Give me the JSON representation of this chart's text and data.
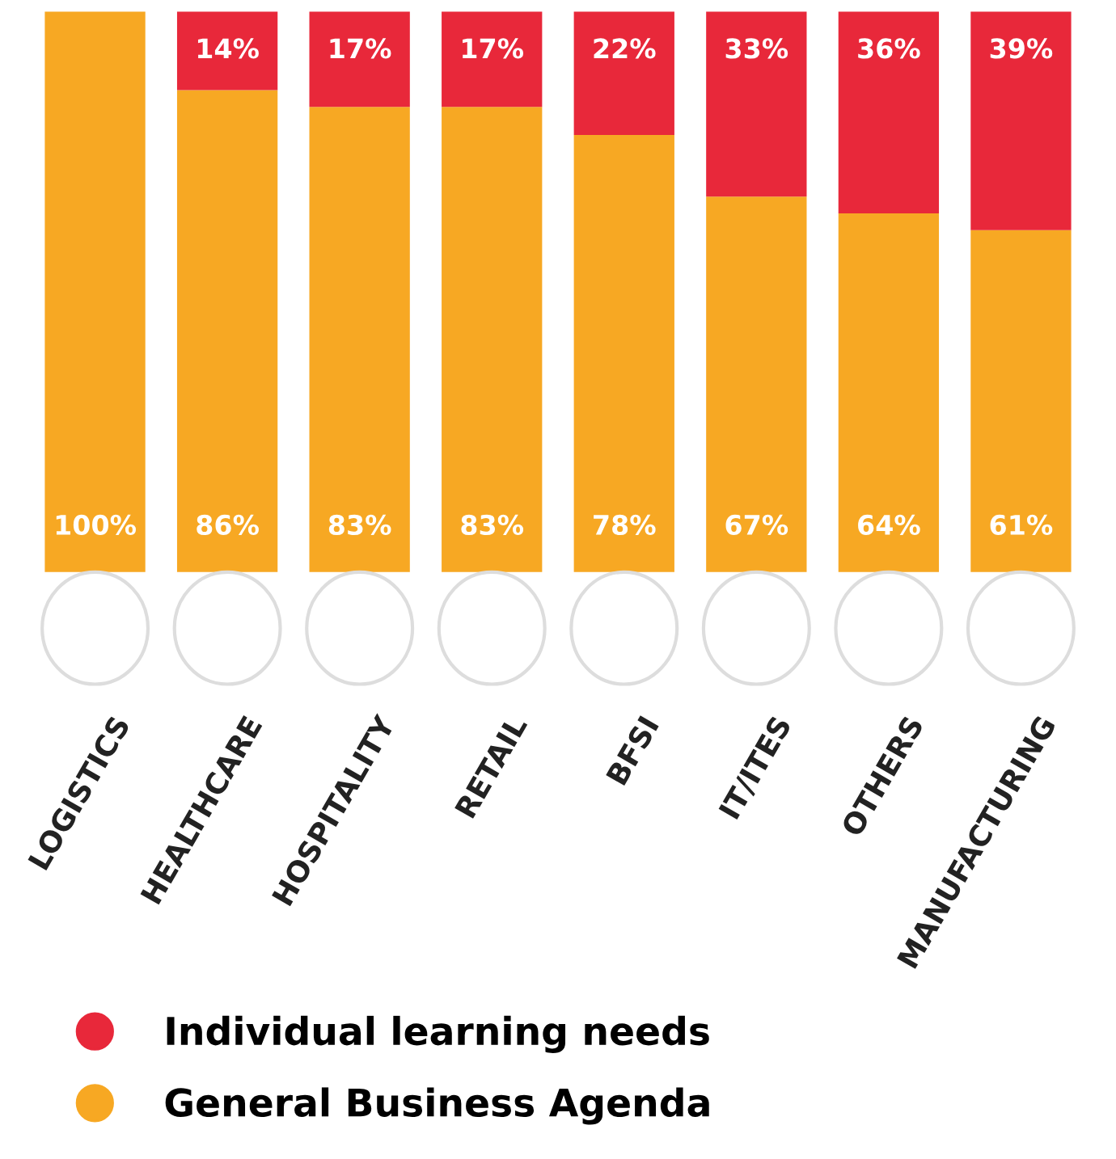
{
  "chart_data": {
    "type": "bar",
    "stacked": true,
    "categories": [
      "LOGISTICS",
      "HEALTHCARE",
      "HOSPITALITY",
      "RETAIL",
      "BFSI",
      "IT/ITES",
      "OTHERS",
      "MANUFACTURING"
    ],
    "series": [
      {
        "name": "General Business Agenda",
        "color": "#f7a823",
        "values": [
          100,
          86,
          83,
          83,
          78,
          67,
          64,
          61
        ],
        "value_labels": [
          "100%",
          "86%",
          "83%",
          "83%",
          "78%",
          "67%",
          "64%",
          "61%"
        ]
      },
      {
        "name": "Individual learning needs",
        "color": "#e8283a",
        "values": [
          null,
          14,
          17,
          17,
          22,
          33,
          36,
          39
        ],
        "value_labels": [
          null,
          "14%",
          "17%",
          "17%",
          "22%",
          "33%",
          "36%",
          "39%"
        ]
      }
    ],
    "legend": "bottom left"
  }
}
